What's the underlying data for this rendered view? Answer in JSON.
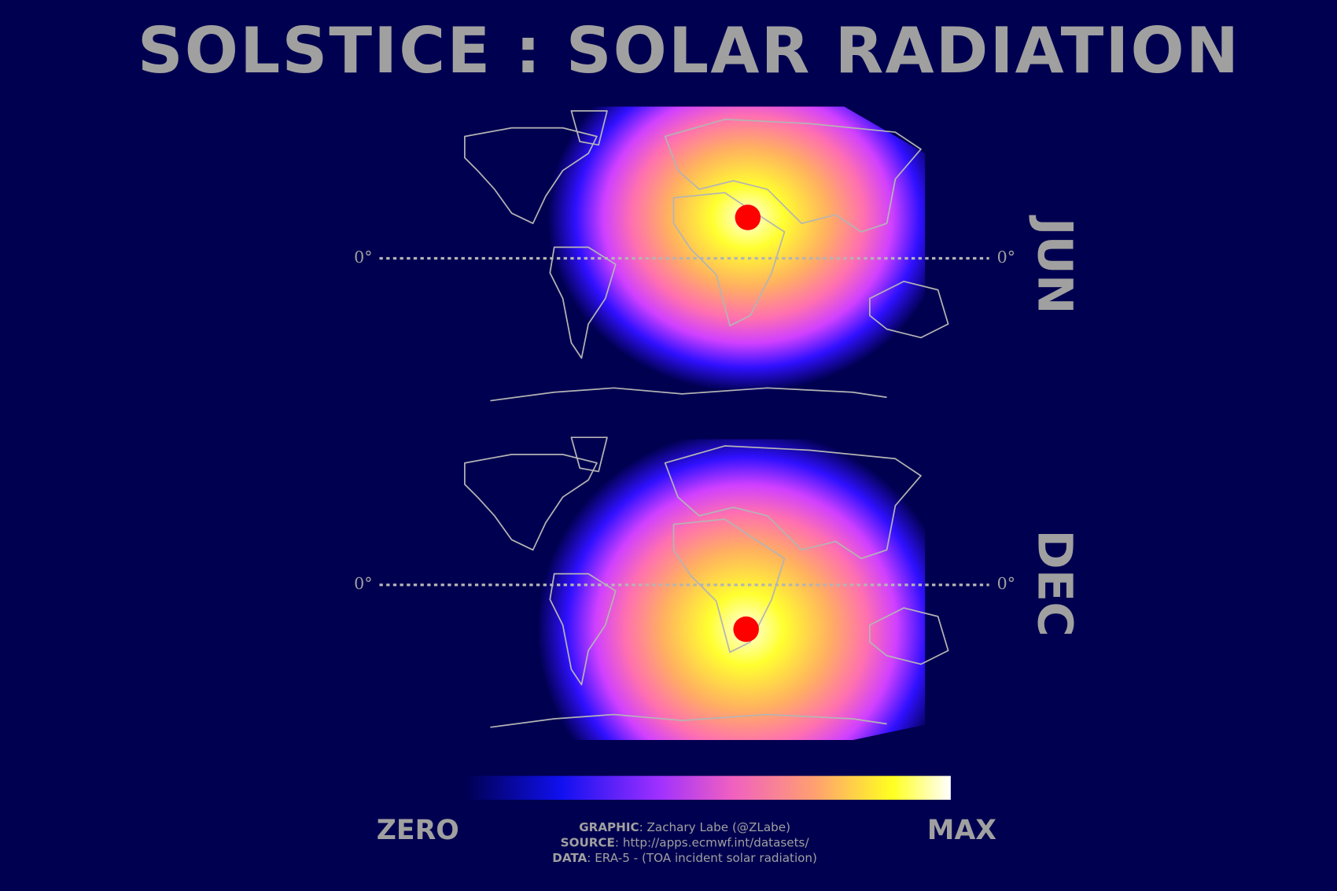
{
  "title": "SOLSTICE : SOLAR RADIATION",
  "panels": [
    {
      "label": "JUN",
      "equator_left": "0°",
      "equator_right": "0°"
    },
    {
      "label": "DEC",
      "equator_left": "0°",
      "equator_right": "0°"
    }
  ],
  "colorbar": {
    "min_label": "ZERO",
    "max_label": "MAX"
  },
  "credits": [
    {
      "key": "GRAPHIC",
      "text": ": Zachary Labe (@ZLabe)"
    },
    {
      "key": "SOURCE",
      "text": ": http://apps.ecmwf.int/datasets/"
    },
    {
      "key": "DATA",
      "text": ": ERA-5 - (TOA incident solar radiation)"
    }
  ]
}
